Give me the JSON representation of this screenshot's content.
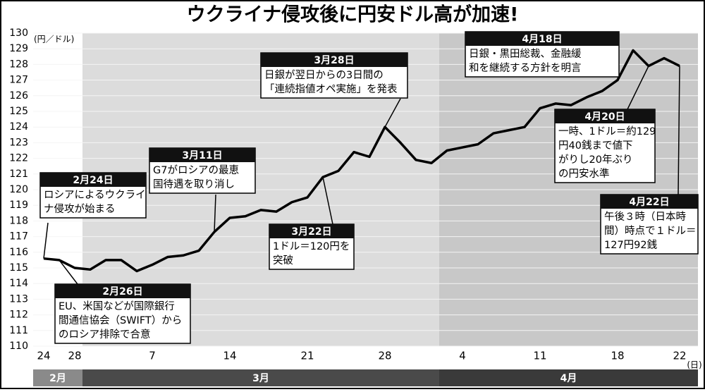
{
  "chart_data": {
    "type": "line",
    "title": "ウクライナ侵攻後に円安ドル高が加速!",
    "y_label": "(円／ドル)",
    "x_label": "(日)",
    "categories": [
      "24",
      null,
      "28",
      null,
      null,
      null,
      null,
      "7",
      null,
      null,
      null,
      null,
      "14",
      null,
      null,
      null,
      null,
      "21",
      null,
      null,
      null,
      null,
      "28",
      null,
      null,
      null,
      null,
      "4",
      null,
      null,
      null,
      null,
      "11",
      null,
      null,
      null,
      null,
      "18",
      null,
      null,
      null,
      "22"
    ],
    "values": [
      115.6,
      115.5,
      115.0,
      114.9,
      115.5,
      115.5,
      114.8,
      115.2,
      115.7,
      115.8,
      116.1,
      117.3,
      118.2,
      118.3,
      118.7,
      118.6,
      119.2,
      119.5,
      120.8,
      121.2,
      122.4,
      122.1,
      124.0,
      123.0,
      121.9,
      121.7,
      122.5,
      122.7,
      122.9,
      123.6,
      123.8,
      124.0,
      125.2,
      125.5,
      125.4,
      125.9,
      126.3,
      127.0,
      128.9,
      127.9,
      128.4,
      127.9
    ],
    "color": "#000000",
    "ylim": [
      110,
      130
    ],
    "yticks": [
      110,
      111,
      112,
      113,
      114,
      115,
      116,
      117,
      118,
      119,
      120,
      121,
      122,
      123,
      124,
      125,
      126,
      127,
      128,
      129,
      130
    ],
    "grid": true,
    "months": [
      "2月",
      "3月",
      "4月"
    ],
    "annotations": [
      {
        "title": "2月24日",
        "text": [
          "ロシアによるウクライ",
          "ナ侵攻が始まる"
        ]
      },
      {
        "title": "2月26日",
        "text": [
          "EU、米国などが国際銀行",
          "間通信協会（SWIFT）から",
          "のロシア排除で合意"
        ]
      },
      {
        "title": "3月11日",
        "text": [
          "G7がロシアの最恵",
          "国待遇を取り消し"
        ]
      },
      {
        "title": "3月22日",
        "text": [
          "1ドル＝120円を",
          "突破"
        ]
      },
      {
        "title": "3月28日",
        "text": [
          "日銀が翌日からの3日間の",
          "「連続指値オペ実施」を発表"
        ]
      },
      {
        "title": "4月18日",
        "text": [
          "日銀・黒田総裁、金融緩",
          "和を継続する方針を明言"
        ]
      },
      {
        "title": "4月20日",
        "text": [
          "一時、1ドル＝約129",
          "円40銭まで値下",
          "がりし20年ぶり",
          "の円安水準"
        ]
      },
      {
        "title": "4月22日",
        "text": [
          "午後３時（日本時",
          "間）時点で１ドル＝",
          "127円92銭"
        ]
      }
    ]
  }
}
